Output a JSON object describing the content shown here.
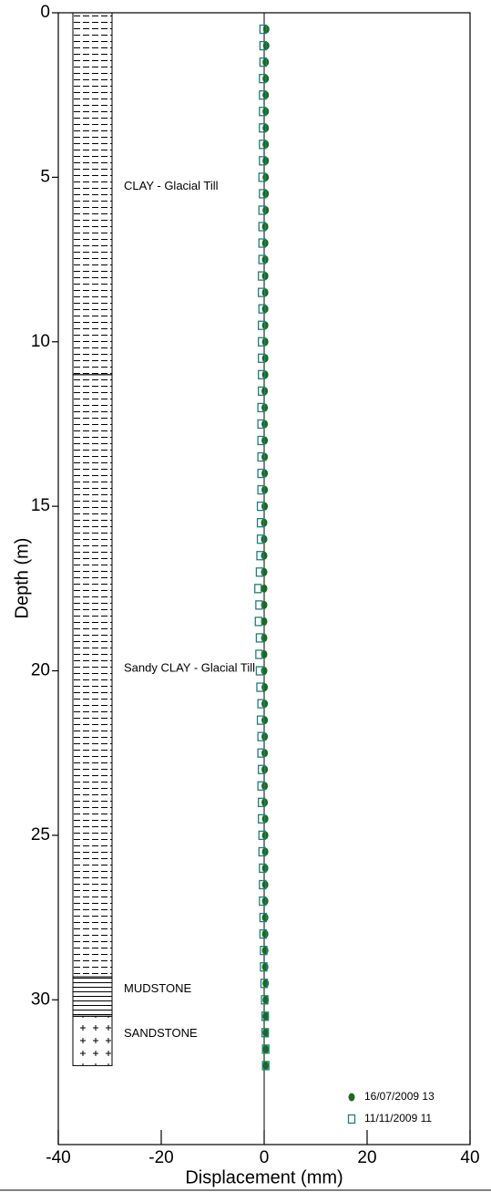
{
  "chart_data": {
    "type": "scatter",
    "xlabel": "Displacement (mm)",
    "ylabel": "Depth (m)",
    "xlim": [
      -40,
      40
    ],
    "xticks": [
      -40,
      -20,
      0,
      20,
      40
    ],
    "ylim": [
      0,
      34.4
    ],
    "yticks": [
      0,
      5,
      10,
      15,
      20,
      25,
      30
    ],
    "y_inverted": true,
    "legend": "lower right",
    "y": [
      0.5,
      1,
      1.5,
      2,
      2.5,
      3,
      3.5,
      4,
      4.5,
      5,
      5.5,
      6,
      6.5,
      7,
      7.5,
      8,
      8.5,
      9,
      9.5,
      10,
      10.5,
      11,
      11.5,
      12,
      12.5,
      13,
      13.5,
      14,
      14.5,
      15,
      15.5,
      16,
      16.5,
      17,
      17.5,
      18,
      18.5,
      19,
      19.5,
      20,
      20.5,
      21,
      21.5,
      22,
      22.5,
      23,
      23.5,
      24,
      24.5,
      25,
      25.5,
      26,
      26.5,
      27,
      27.5,
      28,
      28.5,
      29,
      29.5,
      30,
      30.5,
      31,
      31.5,
      32
    ],
    "series": [
      {
        "name": "16/07/2009 13",
        "color": "#1a6b1a",
        "marker": "dot",
        "x": [
          0.4,
          0.4,
          0.3,
          0.3,
          0.3,
          0.3,
          0.3,
          0.3,
          0.3,
          0.3,
          0.3,
          0.3,
          0.2,
          0.2,
          0.2,
          0.2,
          0.2,
          0.2,
          0.2,
          0.2,
          0.2,
          0.2,
          0.1,
          0.1,
          0.1,
          0.1,
          0.1,
          0.1,
          0.1,
          0.1,
          0.0,
          0.0,
          0.0,
          0.0,
          0.0,
          0.0,
          0.0,
          0.0,
          0.0,
          0.0,
          0.1,
          0.1,
          0.1,
          0.1,
          0.1,
          0.1,
          0.1,
          0.1,
          0.2,
          0.2,
          0.2,
          0.2,
          0.2,
          0.2,
          0.2,
          0.2,
          0.2,
          0.2,
          0.3,
          0.3,
          0.3,
          0.3,
          0.3,
          0.3
        ]
      },
      {
        "name": "11/11/2009 11",
        "color": "#1a8080",
        "marker": "square",
        "x": [
          -0.2,
          -0.2,
          -0.2,
          -0.3,
          -0.3,
          -0.3,
          -0.3,
          -0.3,
          -0.3,
          -0.4,
          -0.3,
          -0.4,
          -0.4,
          -0.4,
          -0.4,
          -0.5,
          -0.5,
          -0.4,
          -0.5,
          -0.5,
          -0.5,
          -0.5,
          -0.5,
          -0.6,
          -0.6,
          -0.6,
          -0.6,
          -0.6,
          -0.6,
          -0.7,
          -0.7,
          -0.7,
          -0.8,
          -0.9,
          -1.2,
          -1.0,
          -1.1,
          -0.9,
          -1.0,
          -0.9,
          -0.8,
          -0.6,
          -0.7,
          -0.6,
          -0.6,
          -0.5,
          -0.6,
          -0.5,
          -0.5,
          -0.4,
          -0.4,
          -0.3,
          -0.3,
          -0.3,
          -0.2,
          -0.2,
          -0.1,
          -0.1,
          0.0,
          0.1,
          0.2,
          0.2,
          0.3,
          0.3
        ]
      }
    ],
    "strata": [
      {
        "label": "CLAY - Glacial Till",
        "top": 0,
        "bottom": 11,
        "pattern": "dash"
      },
      {
        "label": "Sandy CLAY - Glacial Till",
        "top": 11,
        "bottom": 29.3,
        "pattern": "dash"
      },
      {
        "label": "MUDSTONE",
        "top": 29.3,
        "bottom": 30.5,
        "pattern": "lines"
      },
      {
        "label": "SANDSTONE",
        "top": 30.5,
        "bottom": 32,
        "pattern": "plus"
      }
    ]
  }
}
